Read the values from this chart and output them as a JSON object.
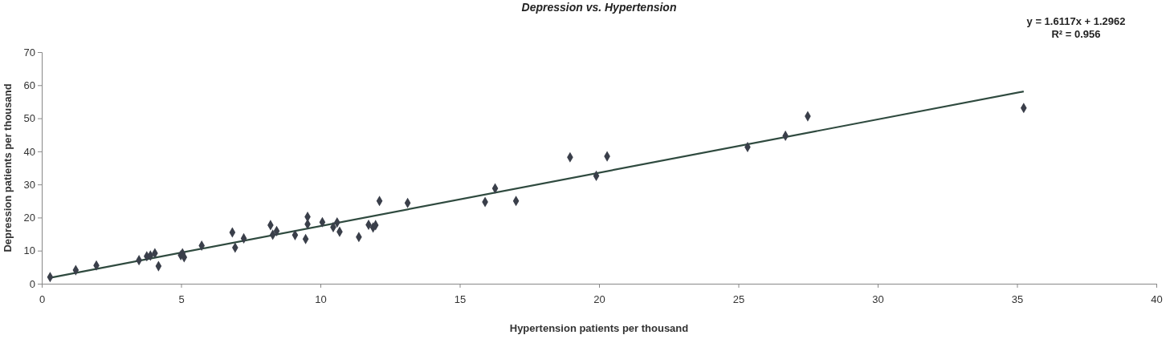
{
  "chart_data": {
    "type": "scatter",
    "title": "Depression vs. Hypertension",
    "xlabel": "Hypertension patients per thousand",
    "ylabel": "Depression patients per thousand",
    "annotations": [
      "y = 1.6117x + 1.2962",
      "R² = 0.956"
    ],
    "xlim": [
      0,
      40
    ],
    "xticks": [
      0,
      5,
      10,
      15,
      20,
      25,
      30,
      35,
      40
    ],
    "ylim": [
      0,
      70
    ],
    "yticks": [
      0,
      10,
      20,
      30,
      40,
      50,
      60,
      70
    ],
    "grid": false,
    "marker": "diamond",
    "series": [
      {
        "color": "#3a3f4a",
        "x": [
          0.3,
          1.22,
          1.96,
          3.49,
          3.77,
          3.9,
          4.06,
          4.19,
          4.99,
          5.11,
          5.05,
          5.74,
          6.84,
          6.94,
          7.25,
          8.21,
          8.29,
          8.43,
          9.09,
          9.47,
          9.54,
          9.54,
          10.07,
          10.46,
          10.6,
          10.69,
          11.38,
          11.73,
          11.89,
          11.98,
          12.12,
          13.13,
          15.91,
          16.27,
          17.02,
          18.96,
          19.9,
          20.29,
          25.33,
          26.69,
          27.49,
          35.24
        ],
        "values": [
          2.0,
          4.1,
          5.5,
          7.1,
          8.3,
          8.5,
          9.2,
          5.3,
          8.6,
          8.0,
          9.2,
          11.5,
          15.5,
          10.9,
          13.7,
          17.7,
          14.8,
          15.9,
          14.7,
          13.5,
          20.2,
          18.0,
          18.6,
          17.1,
          18.5,
          15.7,
          14.1,
          17.8,
          17.0,
          17.7,
          25.0,
          24.4,
          24.7,
          28.8,
          25.0,
          38.2,
          32.6,
          38.5,
          41.3,
          44.7,
          50.6,
          53.1
        ]
      },
      {
        "type": "line",
        "color": "#2f4a3f",
        "marker": "none",
        "line_style": "solid",
        "x": [
          0.3,
          35.24
        ],
        "values": [
          1.8,
          58.1
        ]
      }
    ]
  }
}
